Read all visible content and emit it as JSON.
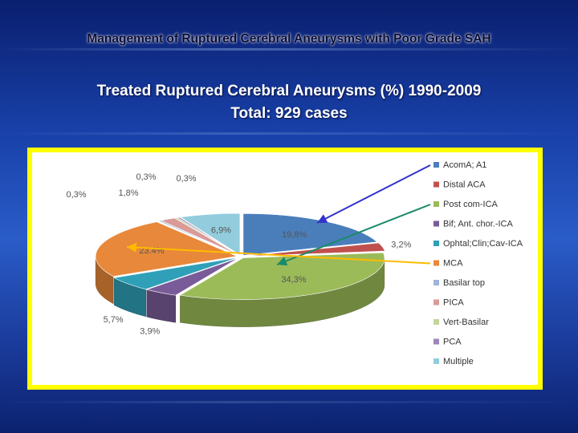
{
  "slide": {
    "title": "Management of Ruptured Cerebral Aneurysms with Poor Grade SAH",
    "subtitle_line1": "Treated  Ruptured  Cerebral  Aneurysms (%)  1990-2009",
    "subtitle_line2": "Total:  929 cases"
  },
  "chart_data": {
    "type": "pie",
    "title": "",
    "style": "3d-exploded",
    "legend_position": "right",
    "series": [
      {
        "name": "AcomA; A1",
        "value": 19.8,
        "label": "19,8%",
        "color": "#4a7ebb"
      },
      {
        "name": "Distal ACA",
        "value": 3.2,
        "label": "3,2%",
        "color": "#c0504d"
      },
      {
        "name": "Post com-ICA",
        "value": 34.3,
        "label": "34,3%",
        "color": "#9bbb59"
      },
      {
        "name": "Bif; Ant. chor.-ICA",
        "value": 3.9,
        "label": "3,9%",
        "color": "#7a5b99"
      },
      {
        "name": "Ophtal;Clin;Cav-ICA",
        "value": 5.7,
        "label": "5,7%",
        "color": "#2fa0b8"
      },
      {
        "name": "MCA",
        "value": 23.4,
        "label": "23.4%",
        "color": "#e8883a"
      },
      {
        "name": "Basilar top",
        "value": 0.3,
        "label": "0,3%",
        "color": "#9fb4d8"
      },
      {
        "name": "PICA",
        "value": 1.8,
        "label": "1,8%",
        "color": "#d99a98"
      },
      {
        "name": "Vert-Basilar",
        "value": 0.3,
        "label": "0,3%",
        "color": "#c3d69b"
      },
      {
        "name": "PCA",
        "value": 0.3,
        "label": "0,3%",
        "color": "#9d86b8"
      },
      {
        "name": "Multiple",
        "value": 6.9,
        "label": "6,9%",
        "color": "#93cddd"
      }
    ],
    "annotations": {
      "arrow_colors": [
        "#3333cc",
        "#1a8a6a",
        "#ffbb00"
      ]
    }
  }
}
